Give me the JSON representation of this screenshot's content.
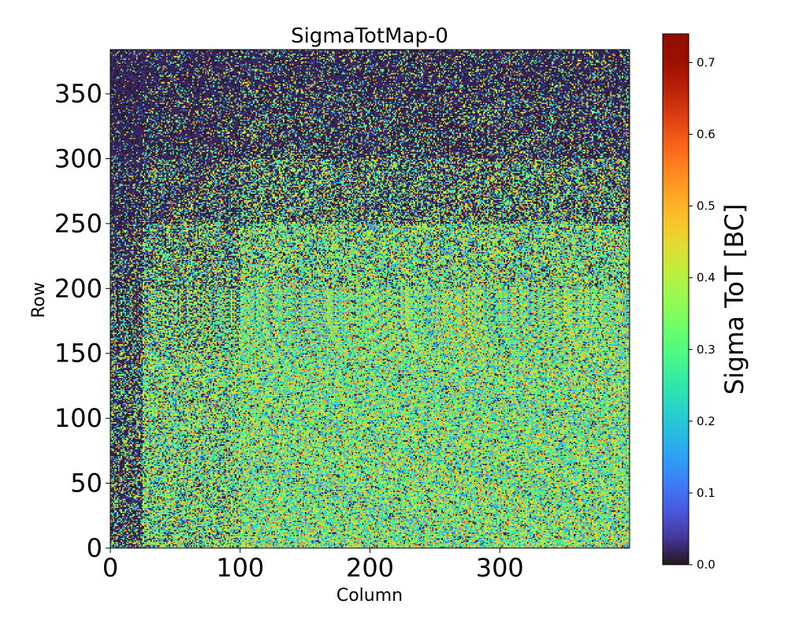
{
  "chart_data": {
    "type": "heatmap",
    "title": "SigmaTotMap-0",
    "xlabel": "Column",
    "ylabel": "Row",
    "xlim": [
      0,
      400
    ],
    "ylim": [
      0,
      384
    ],
    "grid": false,
    "x_ticks": [
      0,
      100,
      200,
      300
    ],
    "x_tick_labels": [
      "0",
      "100",
      "200",
      "300"
    ],
    "y_ticks": [
      0,
      50,
      100,
      150,
      200,
      250,
      300,
      350
    ],
    "y_tick_labels": [
      "0",
      "50",
      "100",
      "150",
      "200",
      "250",
      "300",
      "350"
    ],
    "colorbar": {
      "label": "Sigma ToT [BC]",
      "colormap": "turbo",
      "range": [
        0.0,
        0.74
      ],
      "ticks": [
        0.0,
        0.1,
        0.2,
        0.3,
        0.4,
        0.5,
        0.6,
        0.7
      ],
      "tick_labels": [
        "0.0",
        "0.1",
        "0.2",
        "0.3",
        "0.4",
        "0.5",
        "0.6",
        "0.7"
      ]
    },
    "grid_shape": {
      "columns": 400,
      "rows": 384
    },
    "row_band_means": [
      {
        "rows": [
          0,
          50
        ],
        "mean": 0.29
      },
      {
        "rows": [
          50,
          100
        ],
        "mean": 0.3
      },
      {
        "rows": [
          100,
          150
        ],
        "mean": 0.3
      },
      {
        "rows": [
          150,
          200
        ],
        "mean": 0.27
      },
      {
        "rows": [
          200,
          250
        ],
        "mean": 0.22
      },
      {
        "rows": [
          250,
          300
        ],
        "mean": 0.14
      },
      {
        "rows": [
          300,
          350
        ],
        "mean": 0.08
      },
      {
        "rows": [
          350,
          384
        ],
        "mean": 0.06
      }
    ],
    "column_band_means": [
      {
        "columns": [
          0,
          25
        ],
        "mean": 0.1
      },
      {
        "columns": [
          25,
          100
        ],
        "mean": 0.2
      },
      {
        "columns": [
          100,
          400
        ],
        "mean": 0.26
      }
    ]
  }
}
